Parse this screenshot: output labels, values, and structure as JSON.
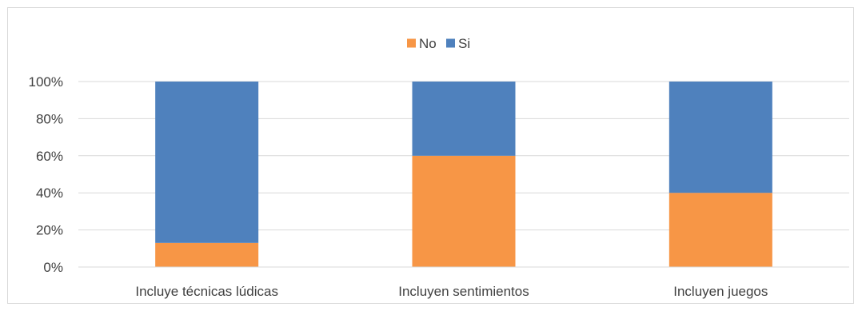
{
  "chart_data": {
    "type": "bar",
    "stacked": true,
    "percent": true,
    "categories": [
      "Incluye técnicas lúdicas",
      "Incluyen sentimientos",
      "Incluyen juegos"
    ],
    "series": [
      {
        "name": "No",
        "values": [
          13,
          60,
          40
        ],
        "color": "#f79646"
      },
      {
        "name": "Si",
        "values": [
          87,
          40,
          60
        ],
        "color": "#4f81bd"
      }
    ],
    "ylim": [
      0,
      100
    ],
    "yticks": [
      "0%",
      "20%",
      "40%",
      "60%",
      "80%",
      "100%"
    ],
    "grid": true,
    "legend": "top-center",
    "title": "",
    "xlabel": "",
    "ylabel": ""
  }
}
